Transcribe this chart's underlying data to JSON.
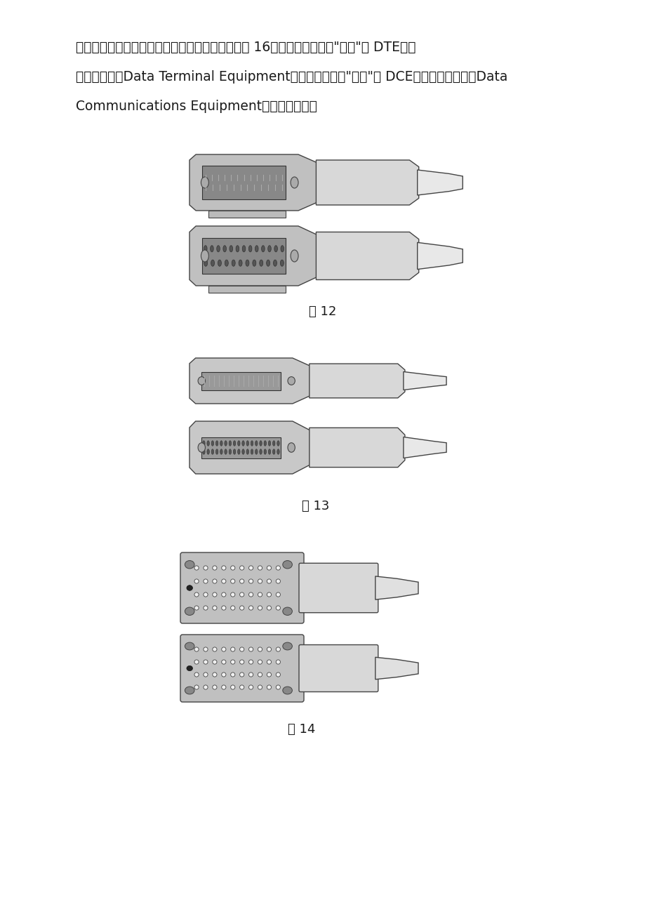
{
  "background_color": "#ffffff",
  "text_lines": [
    "接口类型，这主要是考虑到连接的紧密性，参见图 16。其余各类接口的\"公头\"为 DTE（数",
    "据终端设备，Data Terminal Equipment）连接适配器，\"母头\"为 DCE（数据通信设备，Data",
    "Communications Equipment）连接适配器。"
  ],
  "fig12_label": "图 12",
  "fig13_label": "图 13",
  "fig14_label": "图 14",
  "text_color": "#1a1a1a",
  "connector_color": "#b0b0b0",
  "connector_outline": "#555555",
  "page_bg": "#f5f5f5"
}
